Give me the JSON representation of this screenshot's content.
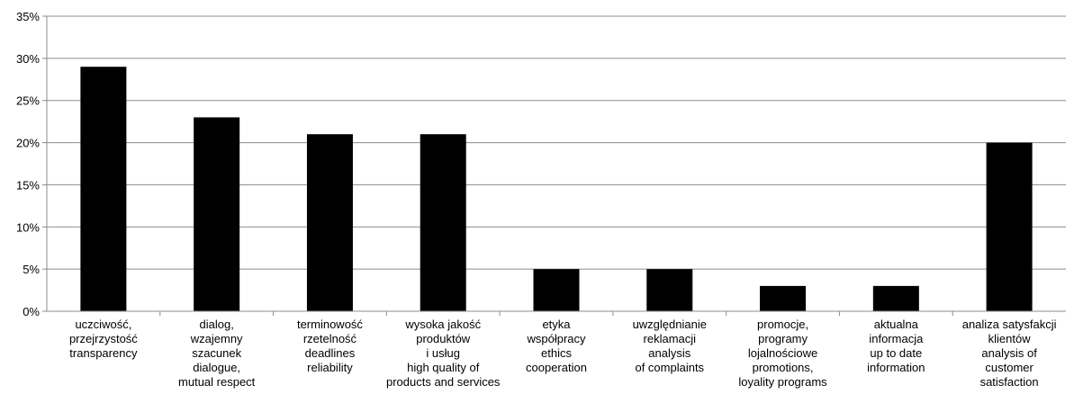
{
  "chart_data": {
    "type": "bar",
    "title": "",
    "xlabel": "",
    "ylabel": "",
    "ylim": [
      0,
      35
    ],
    "yticks": [
      "0%",
      "5%",
      "10%",
      "15%",
      "20%",
      "25%",
      "30%",
      "35%"
    ],
    "grid": true,
    "bar_color": "#000000",
    "categories": [
      [
        "uczciwość,",
        "przejrzystość",
        "transparency"
      ],
      [
        "dialog,",
        "wzajemny",
        "szacunek",
        "dialogue,",
        "mutual respect"
      ],
      [
        "terminowość",
        "rzetelność",
        "deadlines",
        "reliability"
      ],
      [
        "wysoka jakość",
        "produktów",
        "i usług",
        "high quality of",
        "products and services"
      ],
      [
        "etyka",
        "współpracy",
        "ethics",
        "cooperation"
      ],
      [
        "uwzględnianie",
        "reklamacji",
        "analysis",
        "of complaints"
      ],
      [
        "promocje,",
        "programy",
        "lojalnościowe",
        "promotions,",
        "loyality programs"
      ],
      [
        "aktualna",
        "informacja",
        "up to date",
        "information"
      ],
      [
        "analiza satysfakcji",
        "klientów",
        "analysis of",
        "customer",
        "satisfaction"
      ]
    ],
    "values": [
      29,
      23,
      21,
      21,
      5,
      5,
      3,
      3,
      20
    ]
  }
}
